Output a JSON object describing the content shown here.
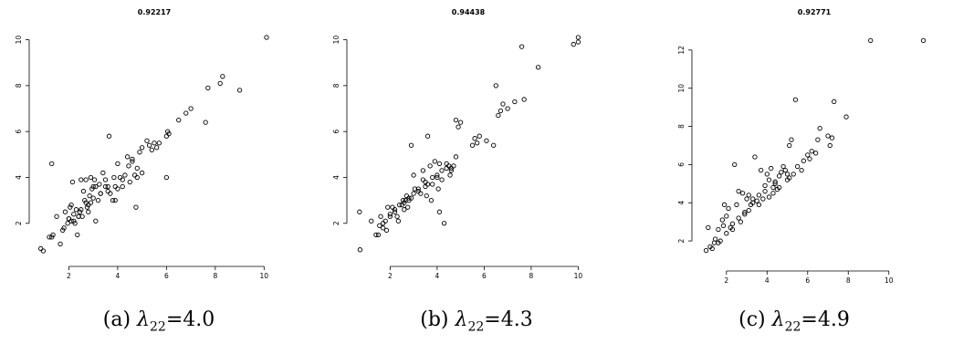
{
  "panels": [
    {
      "caption_prefix": "(a)",
      "caption_symbol": "λ",
      "caption_subscript": "22",
      "caption_value": "=4.0"
    },
    {
      "caption_prefix": "(b)",
      "caption_symbol": "λ",
      "caption_subscript": "22",
      "caption_value": "=4.3"
    },
    {
      "caption_prefix": "(c)",
      "caption_symbol": "λ",
      "caption_subscript": "22",
      "caption_value": "=4.9"
    }
  ],
  "chart_data": [
    {
      "type": "scatter",
      "title": "0.92217",
      "xlabel": "",
      "ylabel": "",
      "xlim": [
        0.75,
        10.25
      ],
      "ylim": [
        0.6,
        10.3
      ],
      "xticks": [
        2,
        4,
        6,
        8,
        10
      ],
      "yticks": [
        2,
        4,
        6,
        8,
        10
      ],
      "marker_color": "#000000",
      "x": [
        0.85,
        0.95,
        1.2,
        1.3,
        1.35,
        1.5,
        1.65,
        1.75,
        1.8,
        1.85,
        1.95,
        2.0,
        2.05,
        2.1,
        2.15,
        2.2,
        2.25,
        2.3,
        2.35,
        2.4,
        2.45,
        2.5,
        2.55,
        2.6,
        2.65,
        2.7,
        2.75,
        2.8,
        2.85,
        2.9,
        2.95,
        3.0,
        3.05,
        3.1,
        3.2,
        3.25,
        3.3,
        3.4,
        3.5,
        3.6,
        3.65,
        3.7,
        3.8,
        3.85,
        3.9,
        4.0,
        4.1,
        4.2,
        4.3,
        4.45,
        4.5,
        4.6,
        4.7,
        4.75,
        4.8,
        4.9,
        5.0,
        5.2,
        5.3,
        5.4,
        5.5,
        5.6,
        5.7,
        6.0,
        6.05,
        6.1,
        6.5,
        6.8,
        7.0,
        7.6,
        7.7,
        8.2,
        8.3,
        9.0,
        10.1,
        2.1,
        2.5,
        2.8,
        3.0,
        3.3,
        3.6,
        4.0,
        4.2,
        4.6,
        5.0,
        2.4,
        2.7,
        3.5,
        3.9,
        4.8,
        1.3,
        2.0,
        3.1,
        4.4,
        6.0,
        2.2,
        2.9
      ],
      "y": [
        0.9,
        0.8,
        1.4,
        4.6,
        1.5,
        2.3,
        1.1,
        1.7,
        1.8,
        2.5,
        2.0,
        2.2,
        2.7,
        2.1,
        3.8,
        2.4,
        2.0,
        2.6,
        1.5,
        2.3,
        2.5,
        3.9,
        2.3,
        3.4,
        3.0,
        3.9,
        2.7,
        2.5,
        3.2,
        4.0,
        3.5,
        3.6,
        3.9,
        2.1,
        3.0,
        3.7,
        3.3,
        4.2,
        3.9,
        3.4,
        5.8,
        3.3,
        3.0,
        4.0,
        3.6,
        4.6,
        4.0,
        3.6,
        4.1,
        4.5,
        3.8,
        4.8,
        4.1,
        2.7,
        4.0,
        5.1,
        5.3,
        5.6,
        5.4,
        5.2,
        5.5,
        5.3,
        5.5,
        4.0,
        6.0,
        5.9,
        6.5,
        6.8,
        7.0,
        6.4,
        7.9,
        8.1,
        8.4,
        7.8,
        10.1,
        2.8,
        2.6,
        2.8,
        3.1,
        3.3,
        3.6,
        3.5,
        3.9,
        4.7,
        4.2,
        2.3,
        2.9,
        3.6,
        3.0,
        4.4,
        1.4,
        2.2,
        3.6,
        4.9,
        5.8,
        2.1,
        2.9
      ]
    },
    {
      "type": "scatter",
      "title": "0.94438",
      "xlabel": "",
      "ylabel": "",
      "xlim": [
        0.55,
        10.1
      ],
      "ylim": [
        0.6,
        10.3
      ],
      "xticks": [
        2,
        4,
        6,
        8,
        10
      ],
      "yticks": [
        2,
        4,
        6,
        8,
        10
      ],
      "marker_color": "#000000",
      "x": [
        0.7,
        0.72,
        1.2,
        1.4,
        1.5,
        1.55,
        1.6,
        1.7,
        1.8,
        1.85,
        1.9,
        2.0,
        2.1,
        2.2,
        2.3,
        2.35,
        2.5,
        2.55,
        2.6,
        2.65,
        2.7,
        2.75,
        2.8,
        2.9,
        3.0,
        3.05,
        3.2,
        3.3,
        3.4,
        3.5,
        3.55,
        3.6,
        3.7,
        3.75,
        3.8,
        3.9,
        4.0,
        4.05,
        4.1,
        4.2,
        4.3,
        4.4,
        4.5,
        4.55,
        4.6,
        4.7,
        4.8,
        4.9,
        5.0,
        5.5,
        5.6,
        5.7,
        5.8,
        6.1,
        6.5,
        6.6,
        6.7,
        6.8,
        7.0,
        7.3,
        7.6,
        7.7,
        8.3,
        9.8,
        10.0,
        10.0,
        2.0,
        2.4,
        2.8,
        3.2,
        3.6,
        4.0,
        4.4,
        2.2,
        2.6,
        3.0,
        3.4,
        3.8,
        4.2,
        4.6,
        1.7,
        2.9,
        3.5,
        4.1,
        4.8,
        6.4
      ],
      "y": [
        2.5,
        0.85,
        2.1,
        1.5,
        1.5,
        1.9,
        2.3,
        1.8,
        2.1,
        1.7,
        2.7,
        2.3,
        2.7,
        2.5,
        2.3,
        2.1,
        2.8,
        3.0,
        2.6,
        3.0,
        3.2,
        2.7,
        3.1,
        5.4,
        4.1,
        3.5,
        3.5,
        3.3,
        4.3,
        3.6,
        3.2,
        5.8,
        4.5,
        3.0,
        3.7,
        4.7,
        4.0,
        3.5,
        2.5,
        3.9,
        2.0,
        4.4,
        4.5,
        4.1,
        4.3,
        4.5,
        6.5,
        6.2,
        6.4,
        5.4,
        5.7,
        5.5,
        5.8,
        5.6,
        8.0,
        6.7,
        6.9,
        7.2,
        7.0,
        7.3,
        9.7,
        7.4,
        8.8,
        9.8,
        9.9,
        10.1,
        2.4,
        2.8,
        3.0,
        3.4,
        3.7,
        4.1,
        4.6,
        2.6,
        2.9,
        3.3,
        3.9,
        4.0,
        4.3,
        4.4,
        2.0,
        3.1,
        3.8,
        4.6,
        4.9,
        5.4
      ]
    },
    {
      "type": "scatter",
      "title": "0.92771",
      "xlabel": "",
      "ylabel": "",
      "xlim": [
        0.75,
        11.9
      ],
      "ylim": [
        1.0,
        12.9
      ],
      "xticks": [
        2,
        4,
        6,
        8,
        10
      ],
      "yticks": [
        2,
        4,
        6,
        8,
        10,
        12
      ],
      "marker_color": "#000000",
      "x": [
        1.0,
        1.1,
        1.2,
        1.3,
        1.4,
        1.45,
        1.6,
        1.7,
        1.8,
        1.85,
        1.9,
        2.0,
        2.1,
        2.2,
        2.3,
        2.4,
        2.5,
        2.6,
        2.7,
        2.8,
        2.9,
        3.0,
        3.1,
        3.2,
        3.3,
        3.4,
        3.5,
        3.6,
        3.7,
        3.8,
        3.9,
        4.0,
        4.1,
        4.2,
        4.3,
        4.4,
        4.5,
        4.6,
        4.7,
        4.8,
        4.9,
        5.0,
        5.1,
        5.2,
        5.3,
        5.4,
        5.5,
        5.7,
        5.8,
        6.0,
        6.2,
        6.4,
        6.5,
        6.6,
        7.0,
        7.1,
        7.2,
        7.3,
        7.9,
        9.1,
        11.7,
        2.0,
        2.6,
        3.1,
        3.6,
        4.1,
        4.6,
        5.1,
        1.6,
        2.3,
        3.3,
        3.9,
        4.4,
        5.0,
        6.1,
        2.9,
        4.3
      ],
      "y": [
        1.5,
        2.7,
        1.7,
        1.6,
        1.9,
        2.1,
        2.6,
        2.0,
        3.1,
        2.8,
        3.9,
        3.3,
        3.7,
        2.7,
        2.6,
        6.0,
        3.9,
        4.6,
        3.0,
        4.5,
        3.5,
        4.2,
        4.4,
        3.9,
        4.2,
        6.4,
        4.1,
        4.4,
        5.7,
        4.2,
        4.9,
        5.5,
        5.2,
        5.8,
        4.8,
        5.0,
        4.7,
        5.4,
        5.6,
        5.9,
        5.7,
        5.2,
        7.0,
        7.3,
        5.5,
        9.4,
        5.9,
        5.7,
        6.2,
        6.5,
        6.7,
        6.6,
        7.3,
        7.9,
        7.5,
        7.0,
        7.4,
        9.3,
        8.5,
        12.5,
        12.5,
        2.4,
        3.2,
        3.6,
        3.9,
        4.3,
        4.8,
        5.3,
        1.9,
        2.9,
        4.0,
        4.6,
        5.1,
        5.5,
        6.3,
        3.4,
        4.5
      ]
    }
  ]
}
